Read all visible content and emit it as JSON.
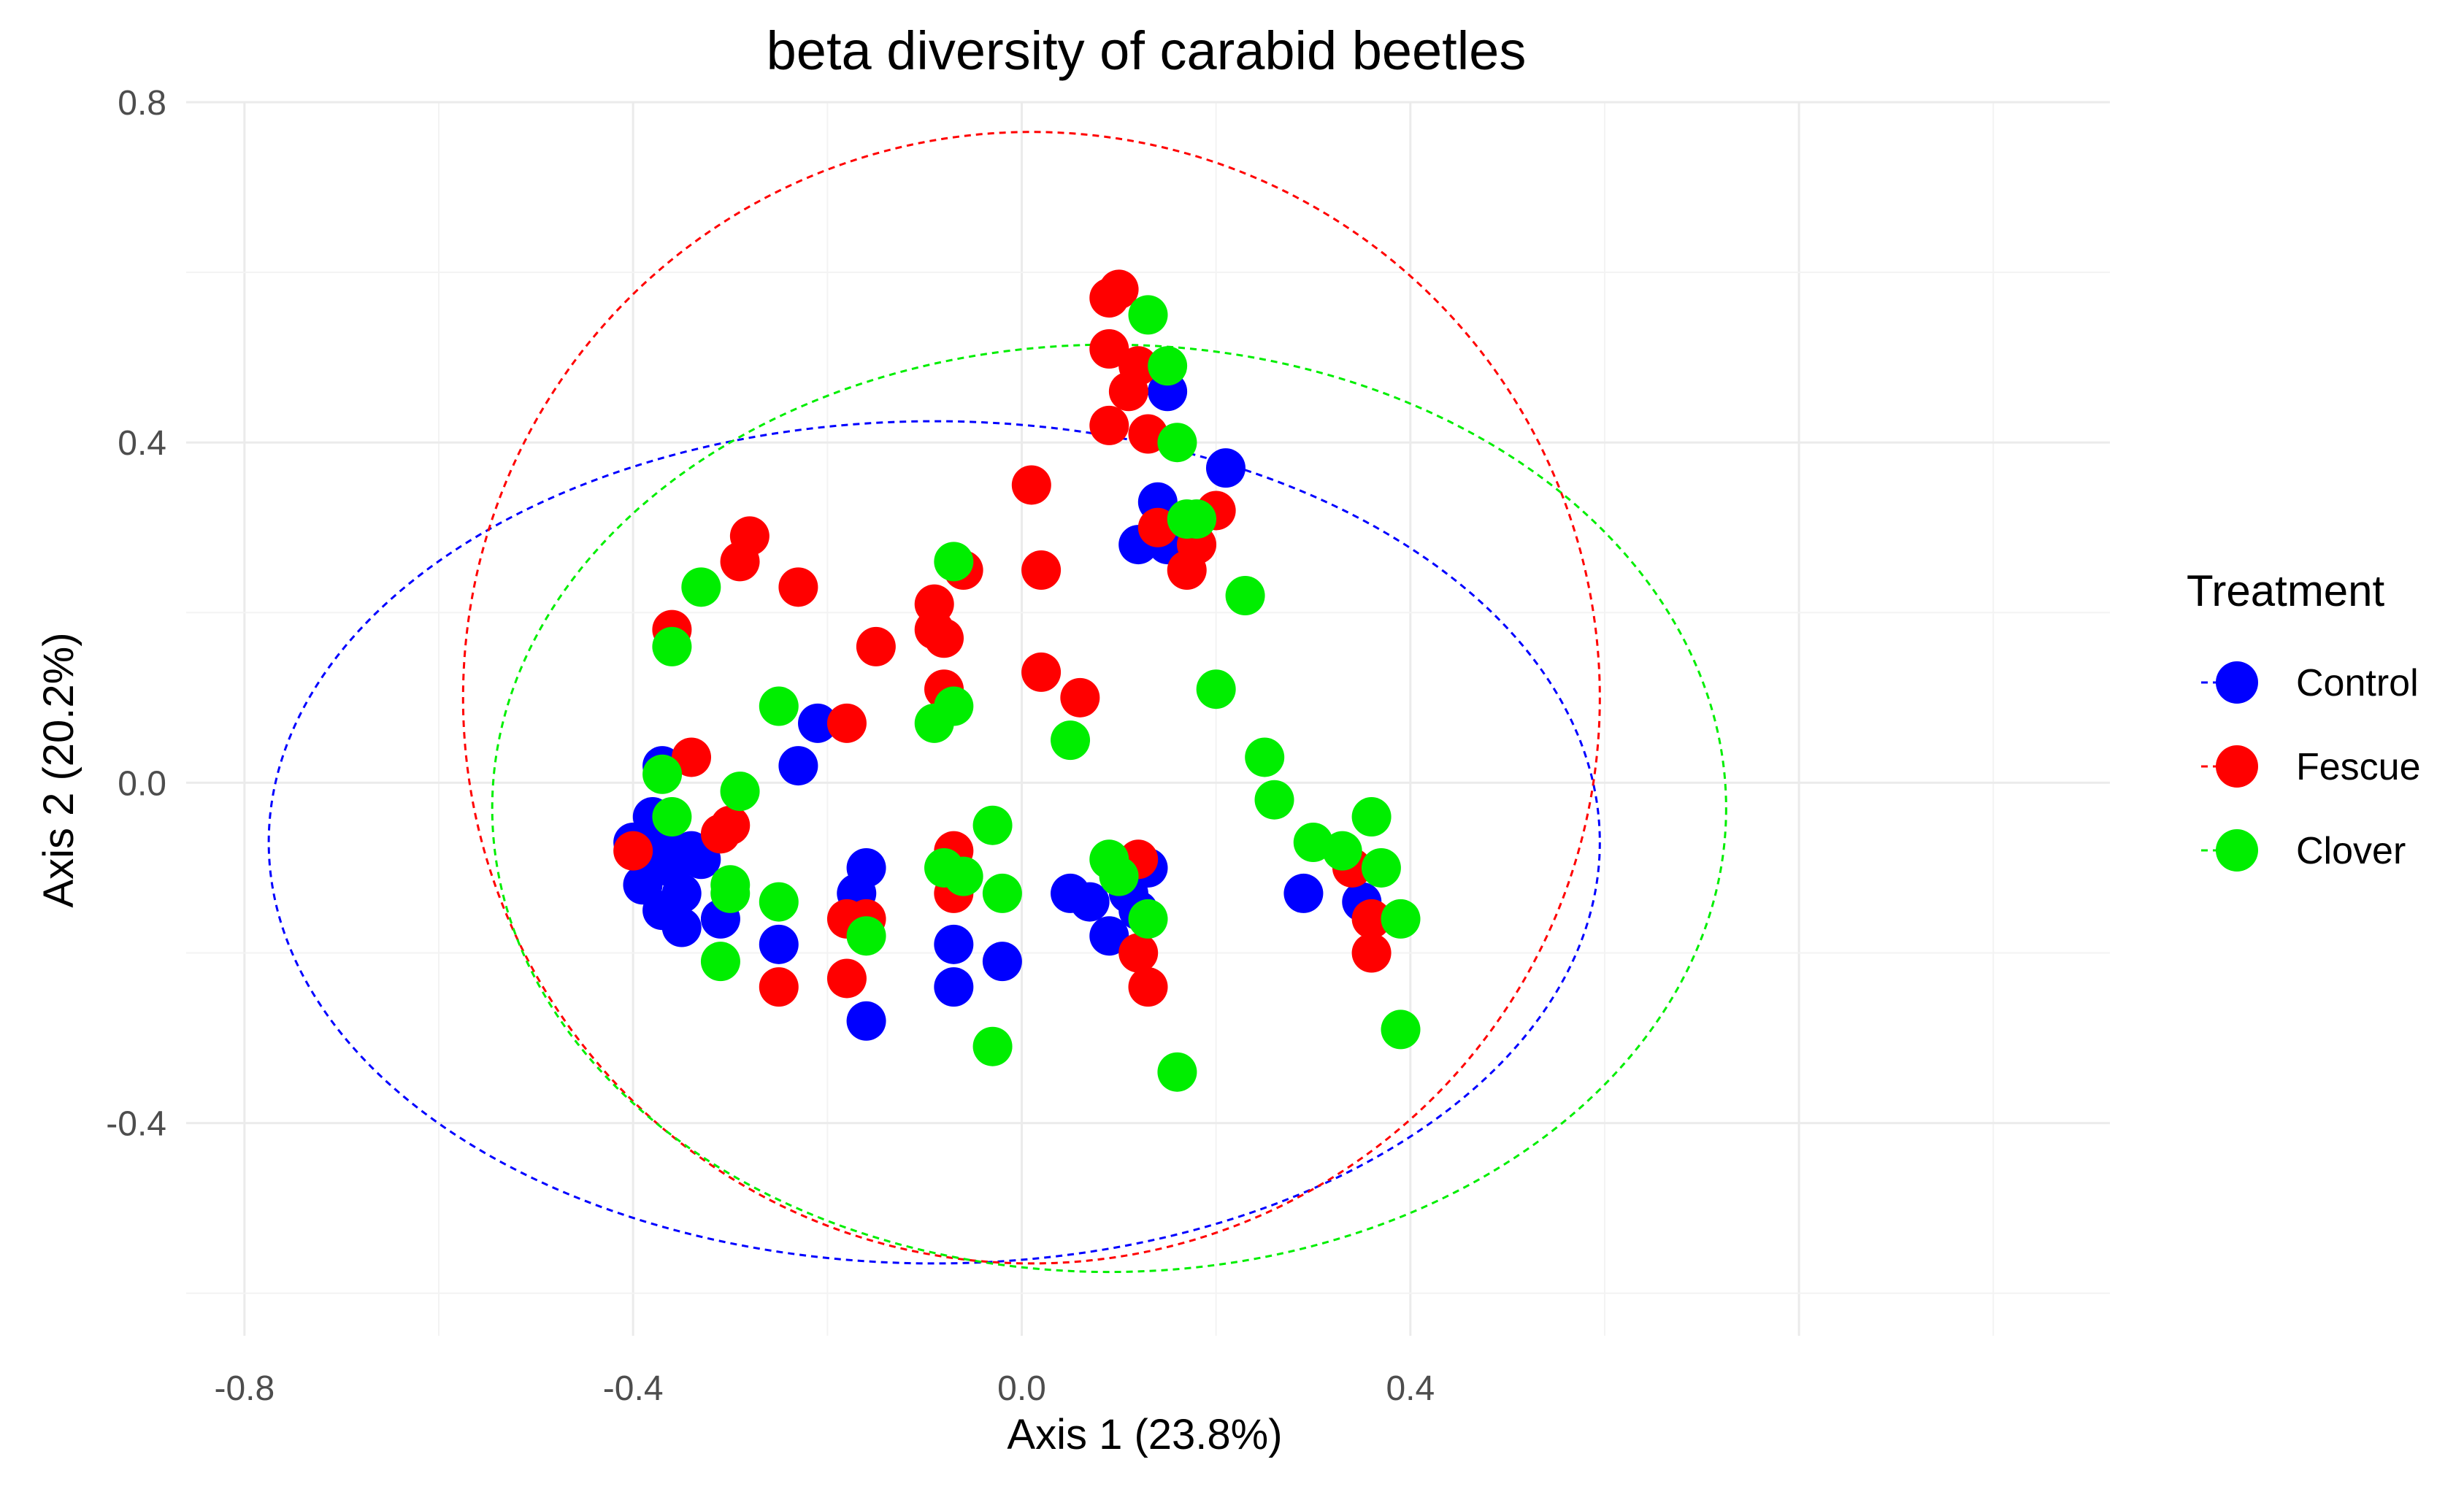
{
  "chart_data": {
    "type": "scatter",
    "title": "beta diversity of carabid beetles",
    "xlabel": "Axis 1 (23.8%)",
    "ylabel": "Axis 2 (20.2%)",
    "xlim": [
      -0.86,
      1.12
    ],
    "ylim": [
      -0.65,
      0.8
    ],
    "xticks": [
      -0.8,
      -0.4,
      0.0,
      0.4
    ],
    "xtick_labels": [
      "-0.8",
      "-0.4",
      "0.0",
      "0.4"
    ],
    "yticks": [
      -0.4,
      0.0,
      0.4,
      0.8
    ],
    "ytick_labels": [
      "-0.4",
      "0.0",
      "0.4",
      "0.8"
    ],
    "grid": true,
    "legend": {
      "title": "Treatment",
      "position": "right"
    },
    "series": [
      {
        "name": "Control",
        "color": "#0000ff",
        "points": [
          [
            -0.37,
            0.02
          ],
          [
            -0.38,
            -0.04
          ],
          [
            -0.4,
            -0.07
          ],
          [
            -0.39,
            -0.12
          ],
          [
            -0.37,
            -0.15
          ],
          [
            -0.35,
            -0.13
          ],
          [
            -0.36,
            -0.1
          ],
          [
            -0.34,
            -0.08
          ],
          [
            -0.33,
            -0.09
          ],
          [
            -0.38,
            -0.09
          ],
          [
            -0.35,
            -0.17
          ],
          [
            -0.31,
            -0.16
          ],
          [
            -0.25,
            -0.19
          ],
          [
            -0.23,
            0.02
          ],
          [
            -0.21,
            0.07
          ],
          [
            -0.17,
            -0.13
          ],
          [
            -0.16,
            -0.1
          ],
          [
            -0.16,
            -0.28
          ],
          [
            -0.07,
            -0.19
          ],
          [
            -0.07,
            -0.24
          ],
          [
            -0.02,
            -0.21
          ],
          [
            0.05,
            -0.13
          ],
          [
            0.07,
            -0.14
          ],
          [
            0.09,
            -0.18
          ],
          [
            0.11,
            -0.13
          ],
          [
            0.13,
            -0.1
          ],
          [
            0.12,
            0.28
          ],
          [
            0.14,
            0.33
          ],
          [
            0.15,
            0.28
          ],
          [
            0.15,
            0.46
          ],
          [
            0.21,
            0.37
          ],
          [
            0.29,
            -0.13
          ],
          [
            0.35,
            -0.14
          ],
          [
            -0.37,
            -0.06
          ],
          [
            0.12,
            -0.15
          ]
        ]
      },
      {
        "name": "Fescue",
        "color": "#ff0000",
        "points": [
          [
            -0.4,
            -0.08
          ],
          [
            -0.36,
            0.18
          ],
          [
            -0.34,
            0.03
          ],
          [
            -0.31,
            -0.06
          ],
          [
            -0.3,
            -0.05
          ],
          [
            -0.29,
            0.26
          ],
          [
            -0.28,
            0.29
          ],
          [
            -0.23,
            0.23
          ],
          [
            -0.25,
            -0.24
          ],
          [
            -0.18,
            -0.16
          ],
          [
            -0.18,
            -0.23
          ],
          [
            -0.18,
            0.07
          ],
          [
            -0.16,
            -0.16
          ],
          [
            -0.15,
            0.16
          ],
          [
            -0.09,
            0.21
          ],
          [
            -0.09,
            0.18
          ],
          [
            -0.08,
            0.17
          ],
          [
            -0.08,
            0.11
          ],
          [
            -0.06,
            0.25
          ],
          [
            -0.07,
            -0.08
          ],
          [
            -0.07,
            -0.13
          ],
          [
            0.01,
            0.35
          ],
          [
            0.02,
            0.25
          ],
          [
            0.02,
            0.13
          ],
          [
            0.06,
            0.1
          ],
          [
            0.09,
            0.57
          ],
          [
            0.1,
            0.58
          ],
          [
            0.09,
            0.51
          ],
          [
            0.11,
            0.46
          ],
          [
            0.12,
            0.49
          ],
          [
            0.09,
            0.42
          ],
          [
            0.13,
            0.41
          ],
          [
            0.14,
            0.3
          ],
          [
            0.17,
            0.25
          ],
          [
            0.18,
            0.28
          ],
          [
            0.2,
            0.32
          ],
          [
            0.12,
            -0.09
          ],
          [
            0.12,
            -0.2
          ],
          [
            0.13,
            -0.24
          ],
          [
            0.34,
            -0.1
          ],
          [
            0.36,
            -0.16
          ],
          [
            0.36,
            -0.2
          ]
        ]
      },
      {
        "name": "Clover",
        "color": "#00ee00",
        "points": [
          [
            -0.37,
            0.01
          ],
          [
            -0.36,
            -0.04
          ],
          [
            -0.36,
            0.16
          ],
          [
            -0.33,
            0.23
          ],
          [
            -0.29,
            -0.01
          ],
          [
            -0.3,
            -0.12
          ],
          [
            -0.3,
            -0.13
          ],
          [
            -0.31,
            -0.21
          ],
          [
            -0.25,
            0.09
          ],
          [
            -0.25,
            -0.14
          ],
          [
            -0.16,
            -0.18
          ],
          [
            -0.09,
            0.07
          ],
          [
            -0.07,
            0.26
          ],
          [
            -0.07,
            0.09
          ],
          [
            -0.08,
            -0.1
          ],
          [
            -0.06,
            -0.11
          ],
          [
            -0.03,
            -0.05
          ],
          [
            -0.02,
            -0.13
          ],
          [
            -0.03,
            -0.31
          ],
          [
            0.05,
            0.05
          ],
          [
            0.09,
            -0.09
          ],
          [
            0.1,
            -0.11
          ],
          [
            0.13,
            0.55
          ],
          [
            0.15,
            0.49
          ],
          [
            0.16,
            0.4
          ],
          [
            0.17,
            0.31
          ],
          [
            0.18,
            0.31
          ],
          [
            0.13,
            -0.16
          ],
          [
            0.16,
            -0.34
          ],
          [
            0.2,
            0.11
          ],
          [
            0.23,
            0.22
          ],
          [
            0.25,
            0.03
          ],
          [
            0.26,
            -0.02
          ],
          [
            0.3,
            -0.07
          ],
          [
            0.33,
            -0.08
          ],
          [
            0.36,
            -0.04
          ],
          [
            0.37,
            -0.1
          ],
          [
            0.39,
            -0.16
          ],
          [
            0.39,
            -0.29
          ]
        ]
      }
    ],
    "ellipses": [
      {
        "name": "Control",
        "color": "#0000ff",
        "cx": -0.09,
        "cy": -0.07,
        "rx": 0.685,
        "ry": 0.495
      },
      {
        "name": "Fescue",
        "color": "#ff0000",
        "cx": 0.01,
        "cy": 0.1,
        "rx": 0.585,
        "ry": 0.665
      },
      {
        "name": "Clover",
        "color": "#00ee00",
        "cx": 0.09,
        "cy": -0.03,
        "rx": 0.635,
        "ry": 0.545
      }
    ]
  }
}
